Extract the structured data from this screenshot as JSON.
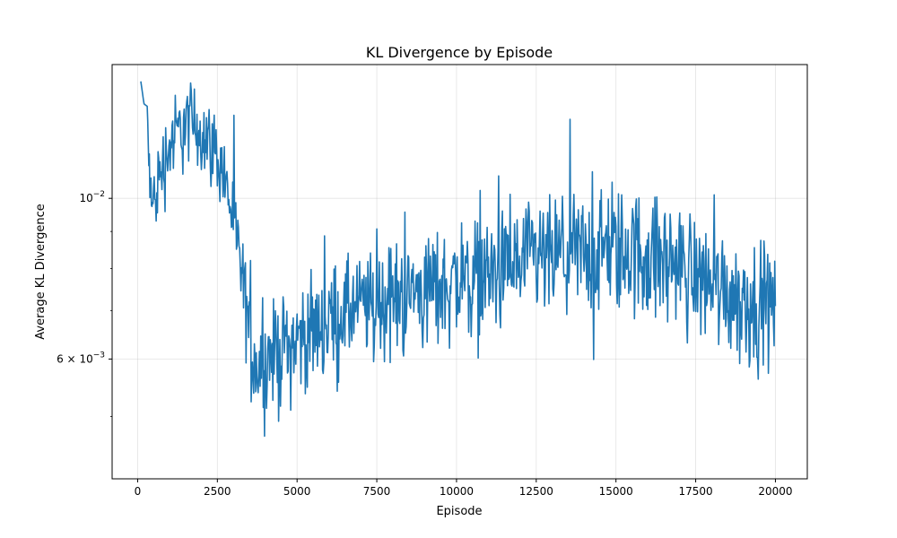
{
  "chart_data": {
    "type": "line",
    "title": "KL Divergence by Episode",
    "xlabel": "Episode",
    "ylabel": "Average KL Divergence",
    "xlim": [
      -800,
      21000
    ],
    "ylim": [
      0.0041,
      0.0153
    ],
    "yscale": "log",
    "grid": true,
    "line_color": "#1f77b4",
    "x_ticks": [
      0,
      2500,
      5000,
      7500,
      10000,
      12500,
      15000,
      17500,
      20000
    ],
    "x_tick_labels": [
      "0",
      "2500",
      "5000",
      "7500",
      "10000",
      "12500",
      "15000",
      "17500",
      "20000"
    ],
    "y_ticks": [
      0.01,
      0.006
    ],
    "y_tick_labels": [
      {
        "mantissa": "",
        "base": "10",
        "exp": "−2"
      },
      {
        "mantissa": "6 × ",
        "base": "10",
        "exp": "−3"
      }
    ],
    "series": [
      {
        "name": "",
        "x": [
          100,
          200,
          300,
          350,
          400,
          450,
          500,
          600,
          700,
          800,
          900,
          1000,
          1100,
          1200,
          1300,
          1400,
          1500,
          1600,
          1700,
          1800,
          1900,
          2000,
          2100,
          2200,
          2300,
          2400,
          2500,
          2600,
          2700,
          2800,
          2900,
          3000,
          3100,
          3200,
          3300,
          3400,
          3500,
          3600,
          3700,
          3800,
          3900,
          4000,
          4500,
          5000,
          5500,
          6000,
          6500,
          7000,
          7500,
          8000,
          8500,
          9000,
          9500,
          10000,
          10500,
          11000,
          11500,
          12000,
          12500,
          13000,
          13500,
          14000,
          14300,
          14500,
          15000,
          15500,
          16000,
          16500,
          17000,
          17500,
          18000,
          18500,
          19000,
          19500,
          20000
        ],
        "y": [
          0.0145,
          0.0135,
          0.0134,
          0.0112,
          0.0107,
          0.0096,
          0.0099,
          0.0103,
          0.0108,
          0.0112,
          0.0115,
          0.0118,
          0.0121,
          0.0122,
          0.0124,
          0.0125,
          0.0127,
          0.0128,
          0.0127,
          0.0126,
          0.0125,
          0.0124,
          0.0122,
          0.0121,
          0.0119,
          0.0117,
          0.0115,
          0.0112,
          0.0108,
          0.0104,
          0.0098,
          0.0093,
          0.0088,
          0.0082,
          0.0076,
          0.0071,
          0.0066,
          0.0062,
          0.006,
          0.0059,
          0.0059,
          0.006,
          0.0062,
          0.0064,
          0.0066,
          0.0068,
          0.007,
          0.0071,
          0.0072,
          0.0073,
          0.0074,
          0.0075,
          0.0076,
          0.0077,
          0.0078,
          0.0079,
          0.008,
          0.0081,
          0.0082,
          0.0083,
          0.0084,
          0.0084,
          0.0084,
          0.0085,
          0.0085,
          0.0085,
          0.0084,
          0.0083,
          0.0081,
          0.0079,
          0.0077,
          0.0075,
          0.0073,
          0.0072,
          0.0071
        ],
        "noise_amplitude": [
          0,
          0,
          0,
          0.0006,
          0.0009,
          0.0011,
          0.0012,
          0.0012,
          0.0013,
          0.0014,
          0.0015,
          0.0015,
          0.0016,
          0.0016,
          0.0016,
          0.0016,
          0.0016,
          0.0016,
          0.0016,
          0.0016,
          0.0015,
          0.0015,
          0.0015,
          0.0015,
          0.0014,
          0.0014,
          0.0014,
          0.0013,
          0.0013,
          0.0013,
          0.0012,
          0.0012,
          0.0011,
          0.0011,
          0.001,
          0.001,
          0.0009,
          0.0009,
          0.0009,
          0.0009,
          0.0009,
          0.0009,
          0.001,
          0.001,
          0.001,
          0.0011,
          0.0011,
          0.0011,
          0.0012,
          0.0012,
          0.0012,
          0.0013,
          0.0013,
          0.0013,
          0.0014,
          0.0014,
          0.0014,
          0.0015,
          0.0015,
          0.0015,
          0.0015,
          0.0016,
          0.0016,
          0.0016,
          0.0016,
          0.0016,
          0.0016,
          0.0015,
          0.0015,
          0.0014,
          0.0014,
          0.0013,
          0.0013,
          0.0012,
          0.0012
        ]
      }
    ]
  }
}
